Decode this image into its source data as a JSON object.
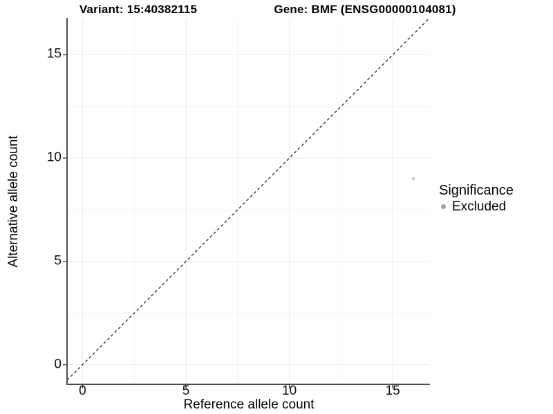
{
  "chart_data": {
    "type": "scatter",
    "title_left": "Variant: 15:40382115",
    "title_right": "Gene: BMF (ENSG00000104081)",
    "xlabel": "Reference allele count",
    "ylabel": "Alternative allele count",
    "xlim": [
      -0.75,
      16.8
    ],
    "ylim": [
      -0.95,
      16.75
    ],
    "x_ticks": [
      0,
      5,
      10,
      15
    ],
    "y_ticks": [
      0,
      5,
      10,
      15
    ],
    "x_minor_ticks": [
      2.5,
      7.5,
      12.5
    ],
    "y_minor_ticks": [
      2.5,
      7.5,
      12.5
    ],
    "grid": {
      "major_color": "#e9e9e9",
      "minor_color": "#f4f4f4"
    },
    "axis_color": "#4d4d4d",
    "points": [
      {
        "x": 16,
        "y": 9,
        "series": "Excluded",
        "color": "#c6c6c6",
        "radius": 2.3
      }
    ],
    "identity_line": {
      "slope": 1,
      "intercept": 0,
      "linetype": "dashed",
      "color": "#151515"
    },
    "legend": {
      "title": "Significance",
      "position": "right",
      "items": [
        {
          "label": "Excluded",
          "color": "#a2a2a2"
        }
      ]
    }
  }
}
